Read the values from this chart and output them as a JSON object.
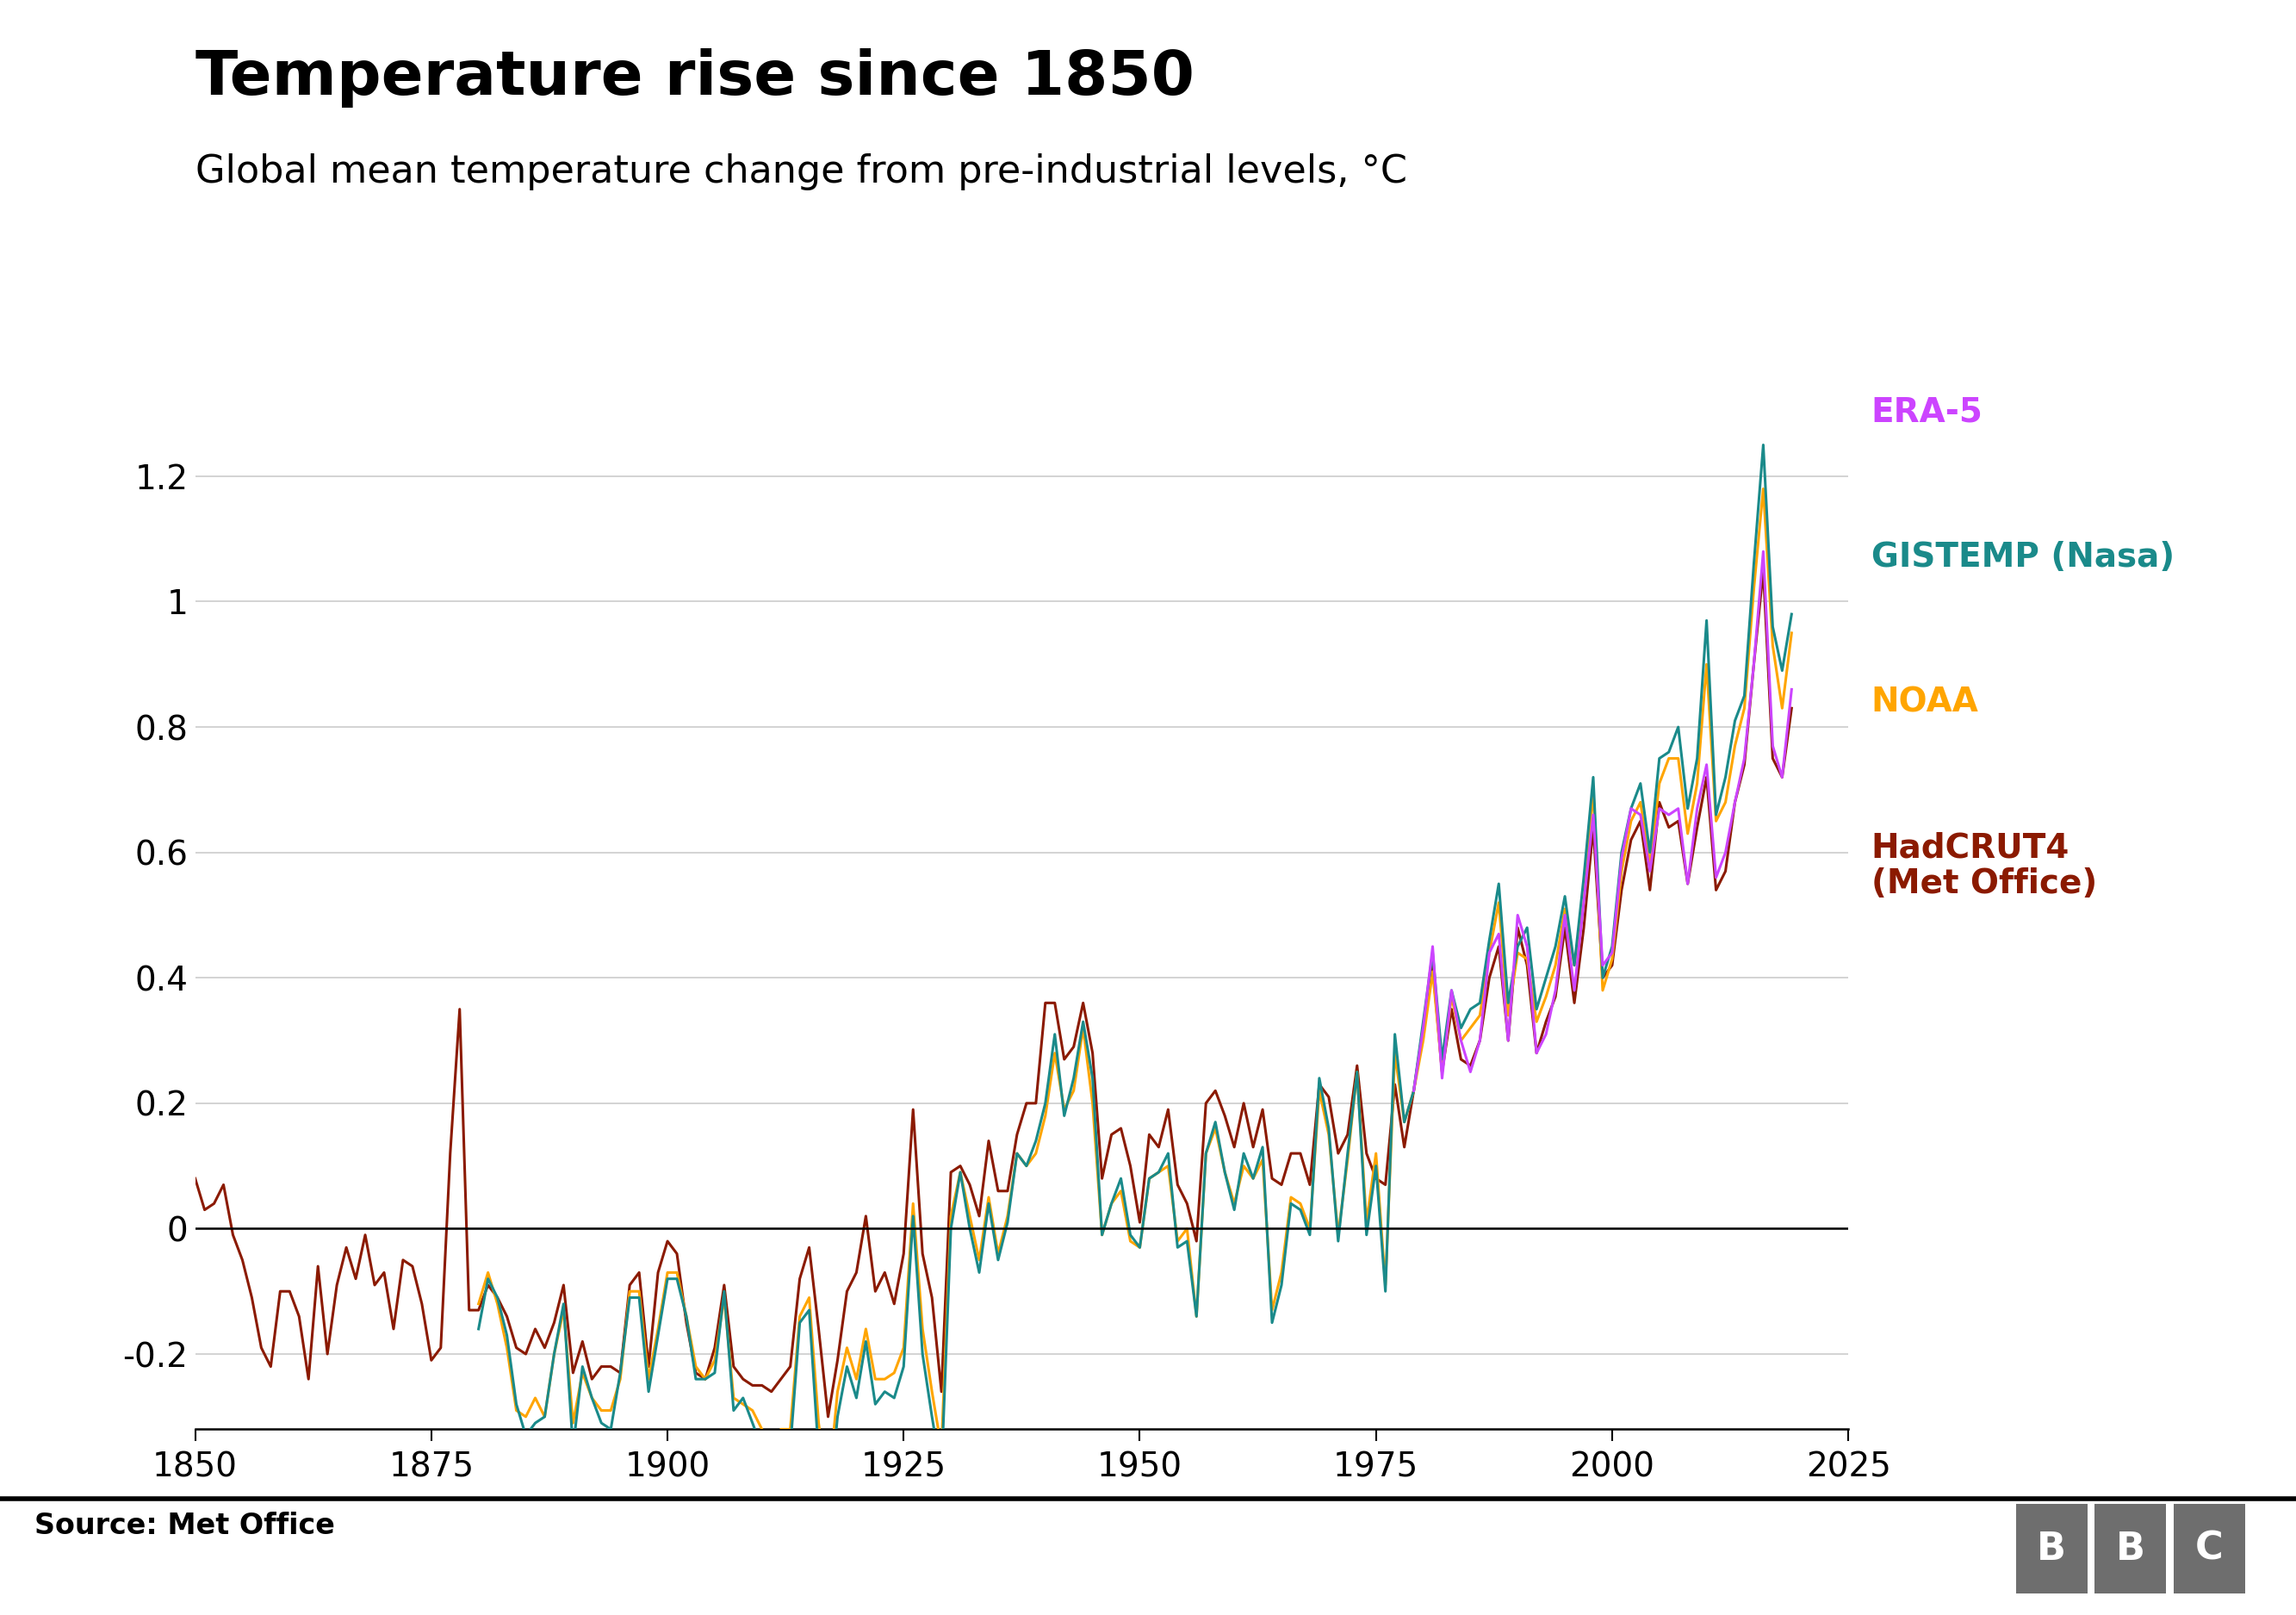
{
  "title": "Temperature rise since 1850",
  "subtitle": "Global mean temperature change from pre-industrial levels, °C",
  "source": "Source: Met Office",
  "xlim": [
    1850,
    2025
  ],
  "ylim": [
    -0.32,
    1.38
  ],
  "xticks": [
    1850,
    1875,
    1900,
    1925,
    1950,
    1975,
    2000,
    2025
  ],
  "yticks": [
    -0.2,
    0,
    0.2,
    0.4,
    0.6,
    0.8,
    1.0,
    1.2
  ],
  "series_colors": {
    "ERA5": "#cc44ff",
    "GISTEMP": "#1a8a8a",
    "NOAA": "#FFA500",
    "HadCRUT4": "#8B1a00"
  },
  "series_labels": {
    "ERA5": "ERA-5",
    "GISTEMP": "GISTEMP (Nasa)",
    "NOAA": "NOAA",
    "HadCRUT4": "HadCRUT4\n(Met Office)"
  },
  "background_color": "#ffffff",
  "grid_color": "#cccccc",
  "title_fontsize": 52,
  "subtitle_fontsize": 32,
  "tick_fontsize": 28,
  "legend_fontsize": 28,
  "source_fontsize": 24,
  "line_width": 2.2,
  "bbc_color": "#6e6e6e",
  "hadcrut4_data": {
    "years": [
      1850,
      1851,
      1852,
      1853,
      1854,
      1855,
      1856,
      1857,
      1858,
      1859,
      1860,
      1861,
      1862,
      1863,
      1864,
      1865,
      1866,
      1867,
      1868,
      1869,
      1870,
      1871,
      1872,
      1873,
      1874,
      1875,
      1876,
      1877,
      1878,
      1879,
      1880,
      1881,
      1882,
      1883,
      1884,
      1885,
      1886,
      1887,
      1888,
      1889,
      1890,
      1891,
      1892,
      1893,
      1894,
      1895,
      1896,
      1897,
      1898,
      1899,
      1900,
      1901,
      1902,
      1903,
      1904,
      1905,
      1906,
      1907,
      1908,
      1909,
      1910,
      1911,
      1912,
      1913,
      1914,
      1915,
      1916,
      1917,
      1918,
      1919,
      1920,
      1921,
      1922,
      1923,
      1924,
      1925,
      1926,
      1927,
      1928,
      1929,
      1930,
      1931,
      1932,
      1933,
      1934,
      1935,
      1936,
      1937,
      1938,
      1939,
      1940,
      1941,
      1942,
      1943,
      1944,
      1945,
      1946,
      1947,
      1948,
      1949,
      1950,
      1951,
      1952,
      1953,
      1954,
      1955,
      1956,
      1957,
      1958,
      1959,
      1960,
      1961,
      1962,
      1963,
      1964,
      1965,
      1966,
      1967,
      1968,
      1969,
      1970,
      1971,
      1972,
      1973,
      1974,
      1975,
      1976,
      1977,
      1978,
      1979,
      1980,
      1981,
      1982,
      1983,
      1984,
      1985,
      1986,
      1987,
      1988,
      1989,
      1990,
      1991,
      1992,
      1993,
      1994,
      1995,
      1996,
      1997,
      1998,
      1999,
      2000,
      2001,
      2002,
      2003,
      2004,
      2005,
      2006,
      2007,
      2008,
      2009,
      2010,
      2011,
      2012,
      2013,
      2014,
      2015,
      2016,
      2017,
      2018,
      2019
    ],
    "values": [
      0.08,
      0.03,
      0.04,
      0.07,
      -0.01,
      -0.05,
      -0.11,
      -0.19,
      -0.22,
      -0.1,
      -0.1,
      -0.14,
      -0.24,
      -0.06,
      -0.2,
      -0.09,
      -0.03,
      -0.08,
      -0.01,
      -0.09,
      -0.07,
      -0.16,
      -0.05,
      -0.06,
      -0.12,
      -0.21,
      -0.19,
      0.12,
      0.35,
      -0.13,
      -0.13,
      -0.09,
      -0.11,
      -0.14,
      -0.19,
      -0.2,
      -0.16,
      -0.19,
      -0.15,
      -0.09,
      -0.23,
      -0.18,
      -0.24,
      -0.22,
      -0.22,
      -0.23,
      -0.09,
      -0.07,
      -0.22,
      -0.07,
      -0.02,
      -0.04,
      -0.15,
      -0.23,
      -0.24,
      -0.19,
      -0.09,
      -0.22,
      -0.24,
      -0.25,
      -0.25,
      -0.26,
      -0.24,
      -0.22,
      -0.08,
      -0.03,
      -0.16,
      -0.3,
      -0.21,
      -0.1,
      -0.07,
      0.02,
      -0.1,
      -0.07,
      -0.12,
      -0.04,
      0.19,
      -0.04,
      -0.11,
      -0.26,
      0.09,
      0.1,
      0.07,
      0.02,
      0.14,
      0.06,
      0.06,
      0.15,
      0.2,
      0.2,
      0.36,
      0.36,
      0.27,
      0.29,
      0.36,
      0.28,
      0.08,
      0.15,
      0.16,
      0.1,
      0.01,
      0.15,
      0.13,
      0.19,
      0.07,
      0.04,
      -0.02,
      0.2,
      0.22,
      0.18,
      0.13,
      0.2,
      0.13,
      0.19,
      0.08,
      0.07,
      0.12,
      0.12,
      0.07,
      0.23,
      0.21,
      0.12,
      0.15,
      0.26,
      0.12,
      0.08,
      0.07,
      0.23,
      0.13,
      0.22,
      0.32,
      0.42,
      0.25,
      0.35,
      0.27,
      0.26,
      0.3,
      0.4,
      0.45,
      0.3,
      0.48,
      0.42,
      0.28,
      0.33,
      0.37,
      0.48,
      0.36,
      0.48,
      0.64,
      0.4,
      0.42,
      0.54,
      0.62,
      0.65,
      0.54,
      0.68,
      0.64,
      0.65,
      0.55,
      0.64,
      0.72,
      0.54,
      0.57,
      0.68,
      0.74,
      0.9,
      1.05,
      0.75,
      0.72,
      0.83
    ]
  },
  "gistemp_data": {
    "years": [
      1880,
      1881,
      1882,
      1883,
      1884,
      1885,
      1886,
      1887,
      1888,
      1889,
      1890,
      1891,
      1892,
      1893,
      1894,
      1895,
      1896,
      1897,
      1898,
      1899,
      1900,
      1901,
      1902,
      1903,
      1904,
      1905,
      1906,
      1907,
      1908,
      1909,
      1910,
      1911,
      1912,
      1913,
      1914,
      1915,
      1916,
      1917,
      1918,
      1919,
      1920,
      1921,
      1922,
      1923,
      1924,
      1925,
      1926,
      1927,
      1928,
      1929,
      1930,
      1931,
      1932,
      1933,
      1934,
      1935,
      1936,
      1937,
      1938,
      1939,
      1940,
      1941,
      1942,
      1943,
      1944,
      1945,
      1946,
      1947,
      1948,
      1949,
      1950,
      1951,
      1952,
      1953,
      1954,
      1955,
      1956,
      1957,
      1958,
      1959,
      1960,
      1961,
      1962,
      1963,
      1964,
      1965,
      1966,
      1967,
      1968,
      1969,
      1970,
      1971,
      1972,
      1973,
      1974,
      1975,
      1976,
      1977,
      1978,
      1979,
      1980,
      1981,
      1982,
      1983,
      1984,
      1985,
      1986,
      1987,
      1988,
      1989,
      1990,
      1991,
      1992,
      1993,
      1994,
      1995,
      1996,
      1997,
      1998,
      1999,
      2000,
      2001,
      2002,
      2003,
      2004,
      2005,
      2006,
      2007,
      2008,
      2009,
      2010,
      2011,
      2012,
      2013,
      2014,
      2015,
      2016,
      2017,
      2018,
      2019
    ],
    "values": [
      -0.16,
      -0.08,
      -0.11,
      -0.17,
      -0.28,
      -0.33,
      -0.31,
      -0.3,
      -0.2,
      -0.12,
      -0.35,
      -0.22,
      -0.27,
      -0.31,
      -0.32,
      -0.23,
      -0.11,
      -0.11,
      -0.26,
      -0.17,
      -0.08,
      -0.08,
      -0.14,
      -0.24,
      -0.24,
      -0.23,
      -0.1,
      -0.29,
      -0.27,
      -0.31,
      -0.35,
      -0.36,
      -0.36,
      -0.35,
      -0.15,
      -0.13,
      -0.36,
      -0.46,
      -0.3,
      -0.22,
      -0.27,
      -0.18,
      -0.28,
      -0.26,
      -0.27,
      -0.22,
      0.02,
      -0.2,
      -0.3,
      -0.39,
      0.0,
      0.09,
      0.0,
      -0.07,
      0.04,
      -0.05,
      0.01,
      0.12,
      0.1,
      0.14,
      0.2,
      0.31,
      0.18,
      0.24,
      0.33,
      0.24,
      -0.01,
      0.04,
      0.08,
      -0.01,
      -0.03,
      0.08,
      0.09,
      0.12,
      -0.03,
      -0.02,
      -0.14,
      0.12,
      0.17,
      0.09,
      0.03,
      0.12,
      0.08,
      0.13,
      -0.15,
      -0.09,
      0.04,
      0.03,
      -0.01,
      0.24,
      0.16,
      -0.02,
      0.12,
      0.25,
      -0.01,
      0.1,
      -0.1,
      0.31,
      0.17,
      0.22,
      0.33,
      0.44,
      0.27,
      0.38,
      0.32,
      0.35,
      0.36,
      0.46,
      0.55,
      0.36,
      0.45,
      0.48,
      0.35,
      0.4,
      0.45,
      0.53,
      0.42,
      0.56,
      0.72,
      0.4,
      0.45,
      0.6,
      0.67,
      0.71,
      0.6,
      0.75,
      0.76,
      0.8,
      0.67,
      0.75,
      0.97,
      0.66,
      0.72,
      0.81,
      0.85,
      1.06,
      1.25,
      0.96,
      0.89,
      0.98
    ]
  },
  "noaa_data": {
    "years": [
      1880,
      1881,
      1882,
      1883,
      1884,
      1885,
      1886,
      1887,
      1888,
      1889,
      1890,
      1891,
      1892,
      1893,
      1894,
      1895,
      1896,
      1897,
      1898,
      1899,
      1900,
      1901,
      1902,
      1903,
      1904,
      1905,
      1906,
      1907,
      1908,
      1909,
      1910,
      1911,
      1912,
      1913,
      1914,
      1915,
      1916,
      1917,
      1918,
      1919,
      1920,
      1921,
      1922,
      1923,
      1924,
      1925,
      1926,
      1927,
      1928,
      1929,
      1930,
      1931,
      1932,
      1933,
      1934,
      1935,
      1936,
      1937,
      1938,
      1939,
      1940,
      1941,
      1942,
      1943,
      1944,
      1945,
      1946,
      1947,
      1948,
      1949,
      1950,
      1951,
      1952,
      1953,
      1954,
      1955,
      1956,
      1957,
      1958,
      1959,
      1960,
      1961,
      1962,
      1963,
      1964,
      1965,
      1966,
      1967,
      1968,
      1969,
      1970,
      1971,
      1972,
      1973,
      1974,
      1975,
      1976,
      1977,
      1978,
      1979,
      1980,
      1981,
      1982,
      1983,
      1984,
      1985,
      1986,
      1987,
      1988,
      1989,
      1990,
      1991,
      1992,
      1993,
      1994,
      1995,
      1996,
      1997,
      1998,
      1999,
      2000,
      2001,
      2002,
      2003,
      2004,
      2005,
      2006,
      2007,
      2008,
      2009,
      2010,
      2011,
      2012,
      2013,
      2014,
      2015,
      2016,
      2017,
      2018,
      2019
    ],
    "values": [
      -0.12,
      -0.07,
      -0.12,
      -0.19,
      -0.29,
      -0.3,
      -0.27,
      -0.3,
      -0.2,
      -0.13,
      -0.31,
      -0.23,
      -0.27,
      -0.29,
      -0.29,
      -0.24,
      -0.1,
      -0.1,
      -0.24,
      -0.16,
      -0.07,
      -0.07,
      -0.14,
      -0.22,
      -0.24,
      -0.21,
      -0.11,
      -0.27,
      -0.28,
      -0.29,
      -0.32,
      -0.34,
      -0.32,
      -0.32,
      -0.14,
      -0.11,
      -0.31,
      -0.42,
      -0.26,
      -0.19,
      -0.24,
      -0.16,
      -0.24,
      -0.24,
      -0.23,
      -0.19,
      0.04,
      -0.16,
      -0.26,
      -0.35,
      0.02,
      0.09,
      0.02,
      -0.05,
      0.05,
      -0.04,
      0.02,
      0.12,
      0.1,
      0.12,
      0.18,
      0.28,
      0.19,
      0.22,
      0.32,
      0.2,
      -0.01,
      0.04,
      0.06,
      -0.02,
      -0.03,
      0.08,
      0.09,
      0.1,
      -0.02,
      0.0,
      -0.14,
      0.12,
      0.16,
      0.09,
      0.04,
      0.1,
      0.08,
      0.11,
      -0.13,
      -0.07,
      0.05,
      0.04,
      0.0,
      0.22,
      0.15,
      -0.01,
      0.11,
      0.25,
      0.01,
      0.12,
      -0.09,
      0.28,
      0.17,
      0.22,
      0.3,
      0.41,
      0.25,
      0.37,
      0.3,
      0.32,
      0.34,
      0.44,
      0.52,
      0.34,
      0.44,
      0.43,
      0.33,
      0.37,
      0.42,
      0.51,
      0.42,
      0.52,
      0.7,
      0.38,
      0.43,
      0.57,
      0.65,
      0.68,
      0.58,
      0.71,
      0.75,
      0.75,
      0.63,
      0.71,
      0.9,
      0.65,
      0.68,
      0.77,
      0.83,
      1.02,
      1.18,
      0.93,
      0.83,
      0.95
    ]
  },
  "era5_data": {
    "years": [
      1979,
      1980,
      1981,
      1982,
      1983,
      1984,
      1985,
      1986,
      1987,
      1988,
      1989,
      1990,
      1991,
      1992,
      1993,
      1994,
      1995,
      1996,
      1997,
      1998,
      1999,
      2000,
      2001,
      2002,
      2003,
      2004,
      2005,
      2006,
      2007,
      2008,
      2009,
      2010,
      2011,
      2012,
      2013,
      2014,
      2015,
      2016,
      2017,
      2018,
      2019
    ],
    "values": [
      0.22,
      0.32,
      0.45,
      0.24,
      0.38,
      0.3,
      0.25,
      0.3,
      0.44,
      0.47,
      0.3,
      0.5,
      0.45,
      0.28,
      0.31,
      0.38,
      0.5,
      0.38,
      0.52,
      0.66,
      0.42,
      0.44,
      0.59,
      0.67,
      0.66,
      0.57,
      0.67,
      0.66,
      0.67,
      0.55,
      0.67,
      0.74,
      0.56,
      0.6,
      0.68,
      0.75,
      0.9,
      1.08,
      0.77,
      0.72,
      0.86
    ]
  }
}
